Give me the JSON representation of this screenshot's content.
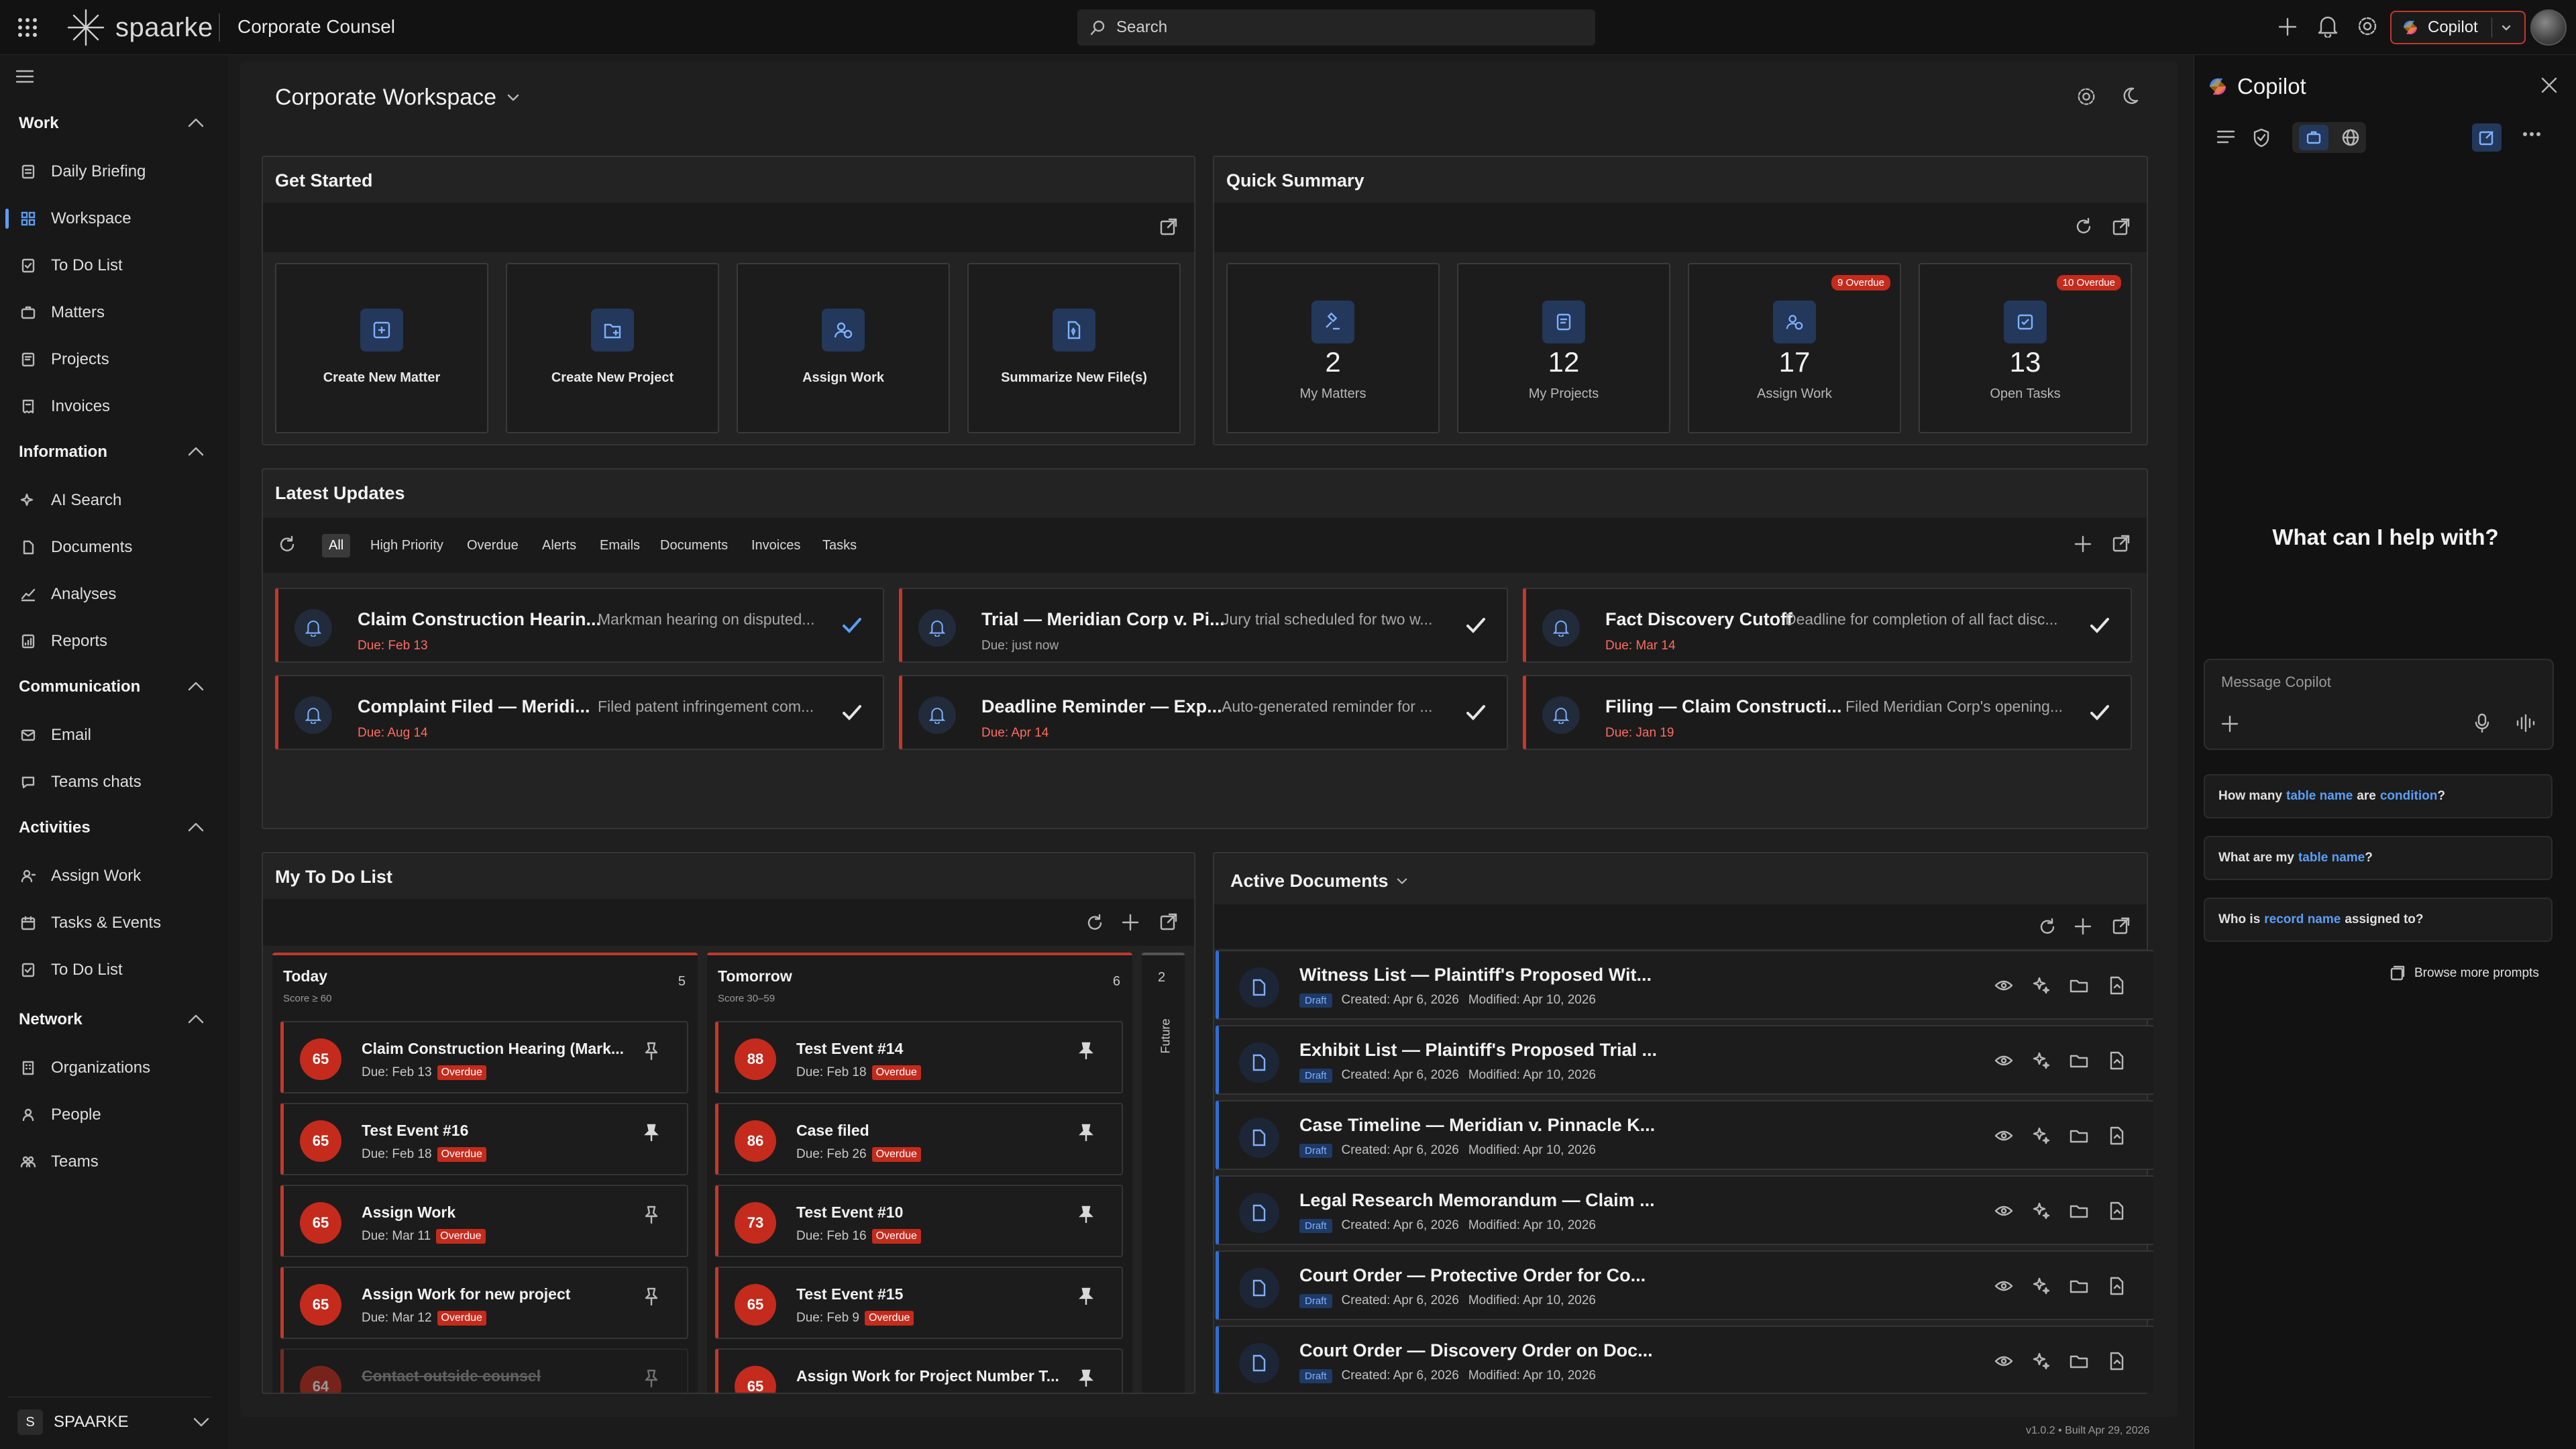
{
  "topbar": {
    "brand": "spaarke",
    "app_title": "Corporate Counsel",
    "search_placeholder": "Search",
    "copilot_label": "Copilot"
  },
  "sidebar": {
    "sections": [
      {
        "title": "Work",
        "items": [
          "Daily Briefing",
          "Workspace",
          "To Do List",
          "Matters",
          "Projects",
          "Invoices"
        ]
      },
      {
        "title": "Information",
        "items": [
          "AI Search",
          "Documents",
          "Analyses",
          "Reports"
        ]
      },
      {
        "title": "Communication",
        "items": [
          "Email",
          "Teams chats"
        ]
      },
      {
        "title": "Activities",
        "items": [
          "Assign Work",
          "Tasks & Events",
          "To Do List"
        ]
      },
      {
        "title": "Network",
        "items": [
          "Organizations",
          "People",
          "Teams"
        ]
      }
    ],
    "tenant_initial": "S",
    "tenant": "SPAARKE"
  },
  "workspace": {
    "title": "Corporate Workspace"
  },
  "get_started": {
    "title": "Get Started",
    "tiles": [
      "Create New Matter",
      "Create New Project",
      "Assign Work",
      "Summarize New File(s)"
    ]
  },
  "quick_summary": {
    "title": "Quick Summary",
    "tiles": [
      {
        "value": "2",
        "label": "My Matters",
        "badge": ""
      },
      {
        "value": "12",
        "label": "My Projects",
        "badge": ""
      },
      {
        "value": "17",
        "label": "Assign Work",
        "badge": "9 Overdue"
      },
      {
        "value": "13",
        "label": "Open Tasks",
        "badge": "10 Overdue"
      }
    ]
  },
  "latest_updates": {
    "title": "Latest Updates",
    "filters": [
      "All",
      "High Priority",
      "Overdue",
      "Alerts",
      "Emails",
      "Documents",
      "Invoices",
      "Tasks"
    ],
    "items": [
      {
        "title": "Claim Construction Hearin...",
        "desc": "Markman hearing on disputed...",
        "due": "Due: Feb 13"
      },
      {
        "title": "Trial — Meridian Corp v. Pi...",
        "desc": "Jury trial scheduled for two w...",
        "due": "Due: just now"
      },
      {
        "title": "Fact Discovery Cutoff",
        "desc": "Deadline for completion of all fact disc...",
        "due": "Due: Mar 14"
      },
      {
        "title": "Complaint Filed — Meridi...",
        "desc": "Filed patent infringement com...",
        "due": "Due: Aug 14"
      },
      {
        "title": "Deadline Reminder — Exp...",
        "desc": "Auto-generated reminder for ...",
        "due": "Due: Apr 14"
      },
      {
        "title": "Filing — Claim Constructi...",
        "desc": "Filed Meridian Corp's opening...",
        "due": "Due: Jan 19"
      }
    ]
  },
  "todo": {
    "title": "My To Do List",
    "columns": [
      {
        "name": "Today",
        "sub": "Score ≥ 60",
        "count": "5",
        "items": [
          {
            "score": "65",
            "title": "Claim Construction Hearing (Mark...",
            "due": "Due: Feb 13",
            "tag": "Overdue"
          },
          {
            "score": "65",
            "title": "Test Event #16",
            "due": "Due: Feb 18",
            "tag": "Overdue"
          },
          {
            "score": "65",
            "title": "Assign Work",
            "due": "Due: Mar 11",
            "tag": "Overdue"
          },
          {
            "score": "65",
            "title": "Assign Work for new project",
            "due": "Due: Mar 12",
            "tag": "Overdue"
          },
          {
            "score": "64",
            "title": "Contact outside counsel",
            "due": "",
            "tag": ""
          }
        ]
      },
      {
        "name": "Tomorrow",
        "sub": "Score 30–59",
        "count": "6",
        "items": [
          {
            "score": "88",
            "title": "Test Event #14",
            "due": "Due: Feb 18",
            "tag": "Overdue"
          },
          {
            "score": "86",
            "title": "Case filed",
            "due": "Due: Feb 26",
            "tag": "Overdue"
          },
          {
            "score": "73",
            "title": "Test Event #10",
            "due": "Due: Feb 16",
            "tag": "Overdue"
          },
          {
            "score": "65",
            "title": "Test Event #15",
            "due": "Due: Feb 9",
            "tag": "Overdue"
          },
          {
            "score": "65",
            "title": "Assign Work for Project Number T...",
            "due": "",
            "tag": ""
          }
        ]
      }
    ],
    "future": {
      "name": "Future",
      "count": "2"
    }
  },
  "documents": {
    "title": "Active Documents",
    "items": [
      {
        "title": "Witness List — Plaintiff's Proposed Wit...",
        "status": "Draft",
        "created": "Created: Apr 6, 2026",
        "modified": "Modified: Apr 10, 2026"
      },
      {
        "title": "Exhibit List — Plaintiff's Proposed Trial ...",
        "status": "Draft",
        "created": "Created: Apr 6, 2026",
        "modified": "Modified: Apr 10, 2026"
      },
      {
        "title": "Case Timeline — Meridian v. Pinnacle K...",
        "status": "Draft",
        "created": "Created: Apr 6, 2026",
        "modified": "Modified: Apr 10, 2026"
      },
      {
        "title": "Legal Research Memorandum — Claim ...",
        "status": "Draft",
        "created": "Created: Apr 6, 2026",
        "modified": "Modified: Apr 10, 2026"
      },
      {
        "title": "Court Order — Protective Order for Co...",
        "status": "Draft",
        "created": "Created: Apr 6, 2026",
        "modified": "Modified: Apr 10, 2026"
      },
      {
        "title": "Court Order — Discovery Order on Doc...",
        "status": "Draft",
        "created": "Created: Apr 6, 2026",
        "modified": "Modified: Apr 10, 2026"
      }
    ]
  },
  "copilot": {
    "title": "Copilot",
    "heading": "What can I help with?",
    "input_placeholder": "Message Copilot",
    "prompts": [
      {
        "a": "How many",
        "b": "table name",
        "c": "are",
        "d": "condition",
        "e": "?"
      },
      {
        "a": "What are my",
        "b": "table name",
        "c": "?",
        "d": "",
        "e": ""
      },
      {
        "a": "Who is",
        "b": "record name",
        "c": "assigned to?",
        "d": "",
        "e": ""
      }
    ],
    "browse": "Browse more prompts"
  },
  "footer": {
    "version": "v1.0.2 • Built Apr 29, 2026"
  },
  "colors": {
    "accent": "#5a9ff5",
    "danger": "#c42b1c",
    "background": "#1b1b1b"
  }
}
